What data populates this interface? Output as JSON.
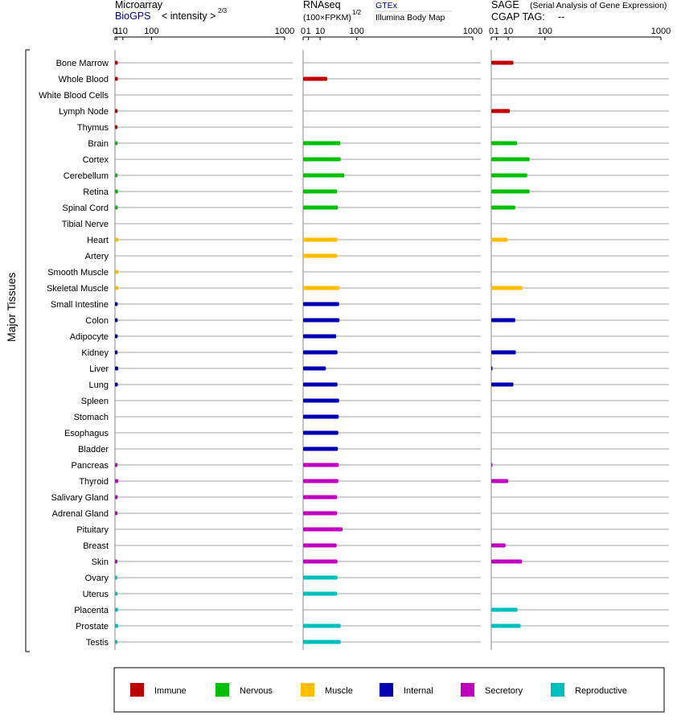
{
  "headers": {
    "microarray": {
      "title": "Microarray",
      "link": "BioGPS",
      "label": "< intensity >",
      "exp": "2/3"
    },
    "rnaseq": {
      "title": "RNAseq",
      "unit": "(100×FPKM)",
      "exp": "1/2",
      "link": "GTEx",
      "sub": "Illumina Body Map"
    },
    "sage": {
      "title": "SAGE",
      "subtitle": "(Serial Analysis of Gene Expression)",
      "tag_label": "CGAP TAG:",
      "tag_value": "--"
    }
  },
  "axis_title": "Major Tissues",
  "legend": [
    {
      "name": "Immune",
      "color": "#c00000"
    },
    {
      "name": "Nervous",
      "color": "#00bf00"
    },
    {
      "name": "Muscle",
      "color": "#ffbf00"
    },
    {
      "name": "Internal",
      "color": "#0000b0"
    },
    {
      "name": "Secretory",
      "color": "#bf00bf"
    },
    {
      "name": "Reproductive",
      "color": "#00bfbf"
    }
  ],
  "chart_data": [
    {
      "type": "bar",
      "panel": "Microarray",
      "scale": "power 2/3",
      "ticks": [
        "0",
        "1",
        "10",
        "100",
        "1000"
      ],
      "xlim": [
        0,
        1000
      ],
      "categories": [
        "Bone Marrow",
        "Whole Blood",
        "White Blood Cells",
        "Lymph Node",
        "Thymus",
        "Brain",
        "Cortex",
        "Cerebellum",
        "Retina",
        "Spinal Cord",
        "Tibial Nerve",
        "Heart",
        "Artery",
        "Smooth Muscle",
        "Skeletal Muscle",
        "Small Intestine",
        "Colon",
        "Adipocyte",
        "Kidney",
        "Liver",
        "Lung",
        "Spleen",
        "Stomach",
        "Esophagus",
        "Bladder",
        "Pancreas",
        "Thyroid",
        "Salivary Gland",
        "Adrenal Gland",
        "Pituitary",
        "Breast",
        "Skin",
        "Ovary",
        "Uterus",
        "Placenta",
        "Prostate",
        "Testis"
      ],
      "groups": [
        "Immune",
        "Immune",
        "Immune",
        "Immune",
        "Immune",
        "Nervous",
        "Nervous",
        "Nervous",
        "Nervous",
        "Nervous",
        "Nervous",
        "Muscle",
        "Muscle",
        "Muscle",
        "Muscle",
        "Internal",
        "Internal",
        "Internal",
        "Internal",
        "Internal",
        "Internal",
        "Internal",
        "Internal",
        "Internal",
        "Internal",
        "Secretory",
        "Secretory",
        "Secretory",
        "Secretory",
        "Secretory",
        "Secretory",
        "Secretory",
        "Reproductive",
        "Reproductive",
        "Reproductive",
        "Reproductive",
        "Reproductive"
      ],
      "values": [
        2.1,
        2.2,
        null,
        1.9,
        1.8,
        1.9,
        null,
        1.8,
        2.3,
        2.1,
        null,
        2.6,
        null,
        2.6,
        2.6,
        2.0,
        2.0,
        2.0,
        1.9,
        2.6,
        2.2,
        null,
        null,
        null,
        null,
        1.8,
        2.6,
        1.9,
        1.8,
        null,
        null,
        1.7,
        1.6,
        1.8,
        2.3,
        2.5,
        1.8
      ]
    },
    {
      "type": "bar",
      "panel": "RNAseq",
      "scale": "power 1/2",
      "ticks": [
        "0",
        "1",
        "10",
        "100",
        "1000"
      ],
      "xlim": [
        0,
        1000
      ],
      "categories": [
        "Bone Marrow",
        "Whole Blood",
        "White Blood Cells",
        "Lymph Node",
        "Thymus",
        "Brain",
        "Cortex",
        "Cerebellum",
        "Retina",
        "Spinal Cord",
        "Tibial Nerve",
        "Heart",
        "Artery",
        "Smooth Muscle",
        "Skeletal Muscle",
        "Small Intestine",
        "Colon",
        "Adipocyte",
        "Kidney",
        "Liver",
        "Lung",
        "Spleen",
        "Stomach",
        "Esophagus",
        "Bladder",
        "Pancreas",
        "Thyroid",
        "Salivary Gland",
        "Adrenal Gland",
        "Pituitary",
        "Breast",
        "Skin",
        "Ovary",
        "Uterus",
        "Placenta",
        "Prostate",
        "Testis"
      ],
      "groups": [
        "Immune",
        "Immune",
        "Immune",
        "Immune",
        "Immune",
        "Nervous",
        "Nervous",
        "Nervous",
        "Nervous",
        "Nervous",
        "Nervous",
        "Muscle",
        "Muscle",
        "Muscle",
        "Muscle",
        "Internal",
        "Internal",
        "Internal",
        "Internal",
        "Internal",
        "Internal",
        "Internal",
        "Internal",
        "Internal",
        "Internal",
        "Secretory",
        "Secretory",
        "Secretory",
        "Secretory",
        "Secretory",
        "Secretory",
        "Secretory",
        "Reproductive",
        "Reproductive",
        "Reproductive",
        "Reproductive",
        "Reproductive"
      ],
      "values": [
        null,
        20,
        null,
        null,
        null,
        48,
        49,
        59,
        40,
        42,
        null,
        41,
        40,
        null,
        46,
        45,
        46,
        38,
        41,
        18,
        41,
        45,
        44,
        43,
        42,
        44,
        43,
        40,
        40,
        54,
        39,
        41,
        41,
        40,
        null,
        49,
        49
      ]
    },
    {
      "type": "bar",
      "panel": "SAGE",
      "scale": "power 1/2",
      "ticks": [
        "0",
        "1",
        "10",
        "100",
        "1000"
      ],
      "xlim": [
        0,
        1000
      ],
      "categories": [
        "Bone Marrow",
        "Whole Blood",
        "White Blood Cells",
        "Lymph Node",
        "Thymus",
        "Brain",
        "Cortex",
        "Cerebellum",
        "Retina",
        "Spinal Cord",
        "Tibial Nerve",
        "Heart",
        "Artery",
        "Smooth Muscle",
        "Skeletal Muscle",
        "Small Intestine",
        "Colon",
        "Adipocyte",
        "Kidney",
        "Liver",
        "Lung",
        "Spleen",
        "Stomach",
        "Esophagus",
        "Bladder",
        "Pancreas",
        "Thyroid",
        "Salivary Gland",
        "Adrenal Gland",
        "Pituitary",
        "Breast",
        "Skin",
        "Ovary",
        "Uterus",
        "Placenta",
        "Prostate",
        "Testis"
      ],
      "groups": [
        "Immune",
        "Immune",
        "Immune",
        "Immune",
        "Immune",
        "Nervous",
        "Nervous",
        "Nervous",
        "Nervous",
        "Nervous",
        "Nervous",
        "Muscle",
        "Muscle",
        "Muscle",
        "Muscle",
        "Internal",
        "Internal",
        "Internal",
        "Internal",
        "Internal",
        "Internal",
        "Internal",
        "Internal",
        "Internal",
        "Internal",
        "Secretory",
        "Secretory",
        "Secretory",
        "Secretory",
        "Secretory",
        "Secretory",
        "Secretory",
        "Reproductive",
        "Reproductive",
        "Reproductive",
        "Reproductive",
        "Reproductive"
      ],
      "values": [
        17,
        null,
        null,
        12,
        null,
        23,
        51,
        45,
        51,
        20,
        null,
        9,
        null,
        null,
        34,
        null,
        20,
        null,
        21,
        0.01,
        17,
        null,
        null,
        null,
        null,
        0.01,
        10,
        null,
        null,
        null,
        7,
        33,
        null,
        null,
        24,
        30,
        null
      ]
    }
  ]
}
